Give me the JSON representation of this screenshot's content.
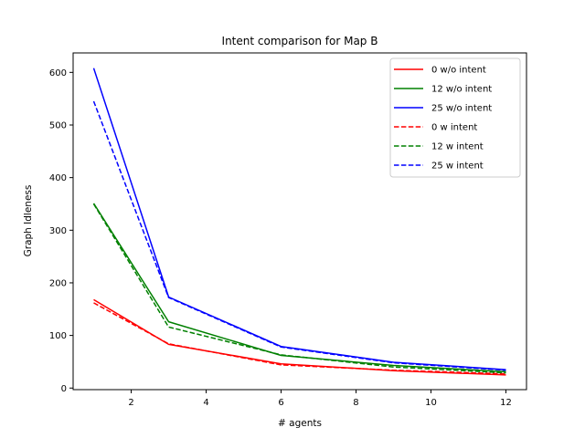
{
  "chart_data": {
    "type": "line",
    "title": "Intent comparison for Map B",
    "xlabel": "# agents",
    "ylabel": "Graph Idleness",
    "x": [
      1,
      3,
      6,
      9,
      12
    ],
    "xlim": [
      0.45,
      12.55
    ],
    "ylim": [
      -3,
      637
    ],
    "xticks": [
      2,
      4,
      6,
      8,
      10,
      12
    ],
    "yticks": [
      0,
      100,
      200,
      300,
      400,
      500,
      600
    ],
    "xtick_labels": [
      "2",
      "4",
      "6",
      "8",
      "10",
      "12"
    ],
    "ytick_labels": [
      "0",
      "100",
      "200",
      "300",
      "400",
      "500",
      "600"
    ],
    "grid": false,
    "legend_position": "top-right",
    "series": [
      {
        "name": "0 w/o intent",
        "color": "#ff0000",
        "dash": "solid",
        "values": [
          168,
          83,
          46,
          33,
          25
        ]
      },
      {
        "name": "12 w/o intent",
        "color": "#008000",
        "dash": "solid",
        "values": [
          351,
          126,
          62,
          43,
          31
        ]
      },
      {
        "name": "25 w/o intent",
        "color": "#0000ff",
        "dash": "solid",
        "values": [
          608,
          173,
          79,
          49,
          35
        ]
      },
      {
        "name": "0 w intent",
        "color": "#ff0000",
        "dash": "dashed",
        "values": [
          162,
          84,
          44,
          34,
          27
        ]
      },
      {
        "name": "12 w intent",
        "color": "#008000",
        "dash": "dashed",
        "values": [
          350,
          116,
          63,
          40,
          29
        ]
      },
      {
        "name": "25 w intent",
        "color": "#0000ff",
        "dash": "dashed",
        "values": [
          545,
          172,
          78,
          48,
          34
        ]
      }
    ]
  }
}
